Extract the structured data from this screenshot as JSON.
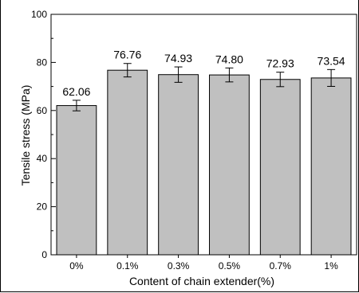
{
  "chart_data": {
    "type": "bar",
    "title": "",
    "xlabel": "Content of chain extender(%)",
    "ylabel": "Tensile stress (MPa)",
    "categories": [
      "0%",
      "0.1%",
      "0.3%",
      "0.5%",
      "0.7%",
      "1%"
    ],
    "values": [
      62.06,
      76.76,
      74.93,
      74.8,
      72.93,
      73.54
    ],
    "value_labels": [
      "62.06",
      "76.76",
      "74.93",
      "74.80",
      "72.93",
      "73.54"
    ],
    "errors": [
      2.2,
      2.8,
      3.2,
      2.9,
      3.0,
      3.5
    ],
    "ylim": [
      0,
      100
    ],
    "yticks": [
      0,
      20,
      40,
      60,
      80,
      100
    ],
    "y_minor_step": 10,
    "grid": false,
    "bar_color": "#c0c0c0",
    "edge_color": "#000000"
  }
}
